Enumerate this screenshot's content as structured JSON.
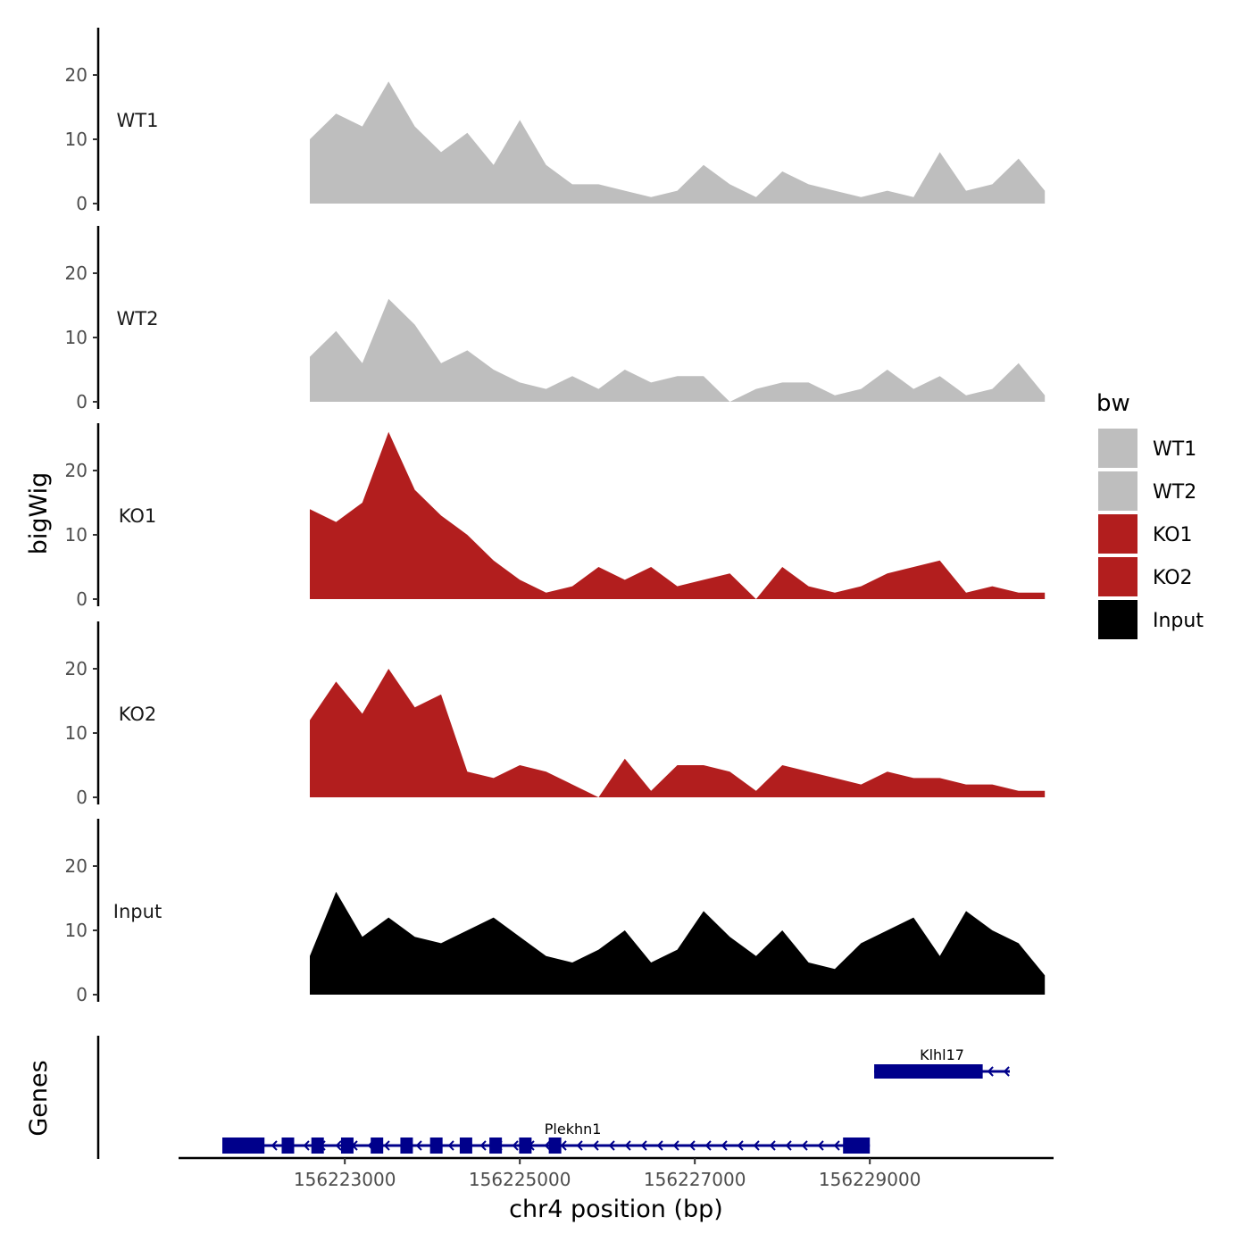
{
  "chart_data": {
    "type": "area",
    "title": "",
    "xlabel": "chr4 position (bp)",
    "ylabel": "bigWig",
    "genes_label": "Genes",
    "xlim": [
      156221100,
      156231100
    ],
    "ylim": [
      0,
      27
    ],
    "y_ticks": [
      0,
      10,
      20
    ],
    "x_ticks": [
      156223000,
      156225000,
      156227000,
      156229000
    ],
    "x_tick_labels": [
      "156223000",
      "156225000",
      "156227000",
      "156229000"
    ],
    "legend": {
      "title": "bw",
      "position": "right",
      "entries": [
        {
          "label": "WT1",
          "color": "#bebebe"
        },
        {
          "label": "WT2",
          "color": "#bebebe"
        },
        {
          "label": "KO1",
          "color": "#b21e1e"
        },
        {
          "label": "KO2",
          "color": "#b21e1e"
        },
        {
          "label": "Input",
          "color": "#000000"
        }
      ]
    },
    "x": [
      156222600,
      156222900,
      156223200,
      156223500,
      156223800,
      156224100,
      156224400,
      156224700,
      156225000,
      156225300,
      156225600,
      156225900,
      156226200,
      156226500,
      156226800,
      156227100,
      156227400,
      156227700,
      156228000,
      156228300,
      156228600,
      156228900,
      156229200,
      156229500,
      156229800,
      156230100,
      156230400,
      156230700,
      156231000
    ],
    "series": [
      {
        "name": "WT1",
        "color": "#bebebe",
        "values": [
          10,
          14,
          12,
          19,
          12,
          8,
          11,
          6,
          13,
          6,
          3,
          3,
          2,
          1,
          2,
          6,
          3,
          1,
          5,
          3,
          2,
          1,
          2,
          1,
          8,
          2,
          3,
          7,
          2
        ]
      },
      {
        "name": "WT2",
        "color": "#bebebe",
        "values": [
          7,
          11,
          6,
          16,
          12,
          6,
          8,
          5,
          3,
          2,
          4,
          2,
          5,
          3,
          4,
          4,
          0,
          2,
          3,
          3,
          1,
          2,
          5,
          2,
          4,
          1,
          2,
          6,
          1
        ]
      },
      {
        "name": "KO1",
        "color": "#b21e1e",
        "values": [
          14,
          12,
          15,
          26,
          17,
          13,
          10,
          6,
          3,
          1,
          2,
          5,
          3,
          5,
          2,
          3,
          4,
          0,
          5,
          2,
          1,
          2,
          4,
          5,
          6,
          1,
          2,
          1,
          1
        ]
      },
      {
        "name": "KO2",
        "color": "#b21e1e",
        "values": [
          12,
          18,
          13,
          20,
          14,
          16,
          4,
          3,
          5,
          4,
          2,
          0,
          6,
          1,
          5,
          5,
          4,
          1,
          5,
          4,
          3,
          2,
          4,
          3,
          3,
          2,
          2,
          1,
          1
        ]
      },
      {
        "name": "Input",
        "color": "#000000",
        "values": [
          6,
          16,
          9,
          12,
          9,
          8,
          10,
          12,
          9,
          6,
          5,
          7,
          10,
          5,
          7,
          13,
          9,
          6,
          10,
          5,
          4,
          8,
          10,
          12,
          6,
          13,
          10,
          8,
          3
        ]
      }
    ],
    "genes": [
      {
        "name": "Plekhn1",
        "start": 156221600,
        "end": 156229000,
        "strand": "-",
        "row": 2
      },
      {
        "name": "Klhl17",
        "start": 156229050,
        "end": 156230600,
        "strand": "-",
        "row": 1
      }
    ]
  }
}
